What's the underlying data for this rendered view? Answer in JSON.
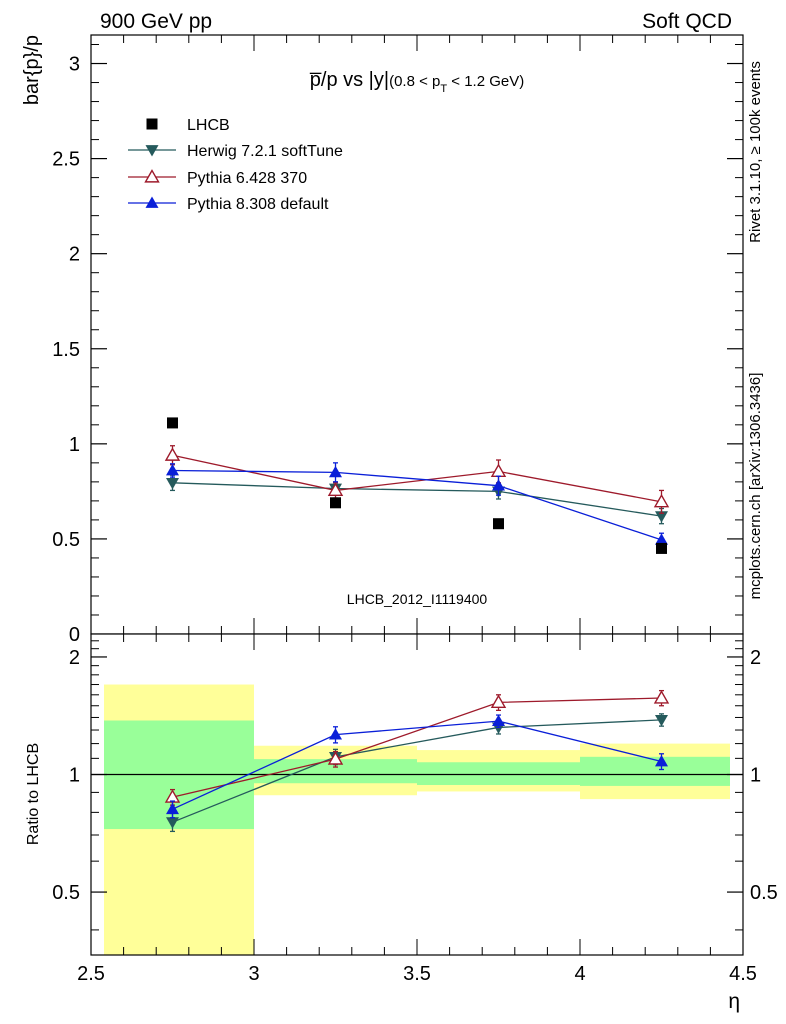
{
  "header": {
    "left": "900 GeV pp",
    "right": "Soft QCD"
  },
  "side_labels": {
    "rivet": "Rivet 3.1.10, ≥ 100k events",
    "mcplots": "mcplots.cern.ch [arXiv:1306.3436]"
  },
  "watermark": "LHCB_2012_I1119400",
  "chart_data": [
    {
      "type": "scatter",
      "panel": "main",
      "title": "p̅/p vs |y|",
      "title_main": "p̅/p vs |y|",
      "title_sub": "(0.8 < p",
      "title_sub_sub": "T",
      "title_sub_end": " < 1.2 GeV)",
      "ylabel": "bar{p}/p",
      "xlim": [
        2.5,
        4.5
      ],
      "ylim": [
        0,
        3.15
      ],
      "yticks": [
        0.5,
        1,
        1.5,
        2,
        2.5,
        3
      ],
      "ytick_labels": [
        "0.5",
        "1",
        "1.5",
        "2",
        "2.5",
        "3"
      ],
      "ytick_zero_label": "0",
      "legend_position": "top-left",
      "series": [
        {
          "name": "LHCB",
          "color": "#000000",
          "marker": "square",
          "x": [
            2.75,
            3.25,
            3.75,
            4.25
          ],
          "y": [
            1.11,
            0.69,
            0.58,
            0.45
          ],
          "err": [
            0,
            0,
            0,
            0
          ]
        },
        {
          "name": "Herwig 7.2.1 softTune",
          "color": "#255a5c",
          "marker": "triangle-down",
          "x": [
            2.75,
            3.25,
            3.75,
            4.25
          ],
          "y": [
            0.795,
            0.765,
            0.75,
            0.62
          ],
          "err": [
            0.04,
            0.035,
            0.04,
            0.04
          ]
        },
        {
          "name": "Pythia 6.428 370",
          "color": "#9e1a2b",
          "marker": "triangle-open",
          "x": [
            2.75,
            3.25,
            3.75,
            4.25
          ],
          "y": [
            0.94,
            0.755,
            0.855,
            0.695
          ],
          "err": [
            0.05,
            0.04,
            0.06,
            0.06
          ]
        },
        {
          "name": "Pythia 8.308 default",
          "color": "#0a1fd8",
          "marker": "triangle-up",
          "x": [
            2.75,
            3.25,
            3.75,
            4.25
          ],
          "y": [
            0.86,
            0.85,
            0.78,
            0.495
          ],
          "err": [
            0.035,
            0.05,
            0.05,
            0.035
          ]
        }
      ]
    },
    {
      "type": "scatter",
      "panel": "ratio",
      "ylabel": "Ratio to LHCB",
      "xlabel": "η",
      "xlim": [
        2.5,
        4.5
      ],
      "ylim": [
        0.345,
        2.29
      ],
      "yticks": [
        0.5,
        1,
        2
      ],
      "ytick_labels": [
        "0.5",
        "1",
        "2"
      ],
      "xticks": [
        2.5,
        3,
        3.5,
        4,
        4.5
      ],
      "xtick_labels": [
        "2.5",
        "3",
        "3.5",
        "4",
        "4.5"
      ],
      "reference_line": 1,
      "bands": [
        {
          "x0": 2.5,
          "x1": 3.0,
          "inner": [
            0.725,
            1.375
          ],
          "outer": [
            0.0,
            1.7
          ]
        },
        {
          "x0": 3.0,
          "x1": 3.5,
          "inner": [
            0.95,
            1.095
          ],
          "outer": [
            0.885,
            1.185
          ]
        },
        {
          "x0": 3.5,
          "x1": 4.0,
          "inner": [
            0.94,
            1.075
          ],
          "outer": [
            0.905,
            1.155
          ]
        },
        {
          "x0": 4.0,
          "x1": 4.5,
          "inner": [
            0.935,
            1.11
          ],
          "outer": [
            0.865,
            1.2
          ]
        }
      ],
      "series": [
        {
          "name": "Herwig 7.2.1 softTune",
          "color": "#255a5c",
          "marker": "triangle-down",
          "x": [
            2.75,
            3.25,
            3.75,
            4.25
          ],
          "y": [
            0.755,
            1.11,
            1.32,
            1.38
          ],
          "err": [
            0.04,
            0.05,
            0.05,
            0.05
          ]
        },
        {
          "name": "Pythia 6.428 370",
          "color": "#9e1a2b",
          "marker": "triangle-open",
          "x": [
            2.75,
            3.25,
            3.75,
            4.25
          ],
          "y": [
            0.875,
            1.095,
            1.53,
            1.57
          ],
          "err": [
            0.04,
            0.05,
            0.07,
            0.07
          ]
        },
        {
          "name": "Pythia 8.308 default",
          "color": "#0a1fd8",
          "marker": "triangle-up",
          "x": [
            2.75,
            3.25,
            3.75,
            4.25
          ],
          "y": [
            0.815,
            1.265,
            1.37,
            1.08
          ],
          "err": [
            0.04,
            0.06,
            0.05,
            0.05
          ]
        }
      ]
    }
  ]
}
